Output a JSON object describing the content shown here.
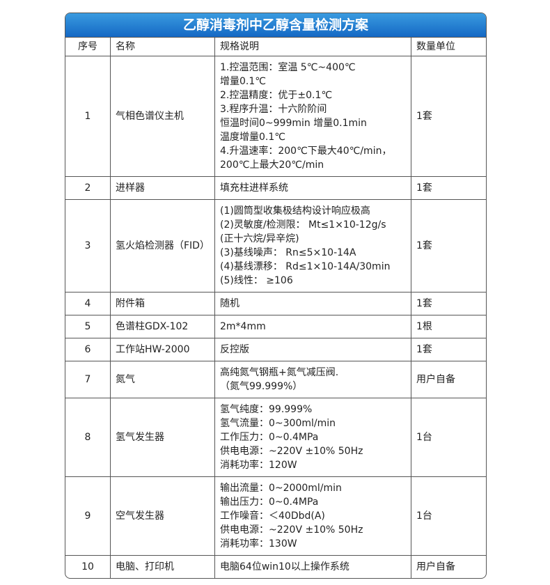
{
  "header": {
    "title": "乙醇消毒剂中乙醇含量检测方案"
  },
  "table": {
    "columns": [
      "序号",
      "名称",
      "规格说明",
      "数量单位"
    ],
    "rows": [
      [
        "1",
        "气相色谱仪主机",
        [
          "1.控温范围：室温 5℃~400℃",
          "增量0.1℃",
          "2.控温精度：优于±0.1℃",
          "3.程序升温：十六阶阶间",
          "恒温时间0~999min 增量0.1min",
          "温度增量0.1℃",
          "4.升温速率：200℃下最大40℃/min，",
          "200℃上最大20℃/min"
        ],
        "1套"
      ],
      [
        "2",
        "进样器",
        [
          "填充柱进样系统"
        ],
        "1套"
      ],
      [
        "3",
        "氢火焰检测器（FID）",
        [
          "(1)圆筒型收集极结构设计响应极高",
          "(2)灵敏度/检测限： Mt≤1×10-12g/s",
          "(正十六烷/异辛烷)",
          "(3)基线噪声： Rn≤5×10-14A",
          "(4)基线漂移： Rd≤1×10-14A/30min",
          "(5)线性： ≥106"
        ],
        "1套"
      ],
      [
        "4",
        "附件箱",
        [
          "随机"
        ],
        "1套"
      ],
      [
        "5",
        "色谱柱GDX-102",
        [
          "2m*4mm"
        ],
        "1根"
      ],
      [
        "6",
        "工作站HW-2000",
        [
          "反控版"
        ],
        "1套"
      ],
      [
        "7",
        "氮气",
        [
          "高纯氮气钢瓶+氮气减压阀.",
          "（氮气99.999%）"
        ],
        "用户自备"
      ],
      [
        "8",
        "氢气发生器",
        [
          "氢气纯度：99.999%",
          "氢气流量：0~300ml/min",
          "工作压力：0~0.4MPa",
          "供电电源：~220V ±10% 50Hz",
          "消耗功率：120W"
        ],
        "1台"
      ],
      [
        "9",
        "空气发生器",
        [
          "输出流量：0~2000ml/min",
          "输出压力：0~0.4MPa",
          "工作噪音：＜40Dbd(A)",
          "供电电源：~220V ±10% 50Hz",
          "消耗功率：130W"
        ],
        "1台"
      ],
      [
        "10",
        "电脑、打印机",
        [
          "电脑64位win10以上操作系统"
        ],
        "用户自备"
      ]
    ]
  }
}
